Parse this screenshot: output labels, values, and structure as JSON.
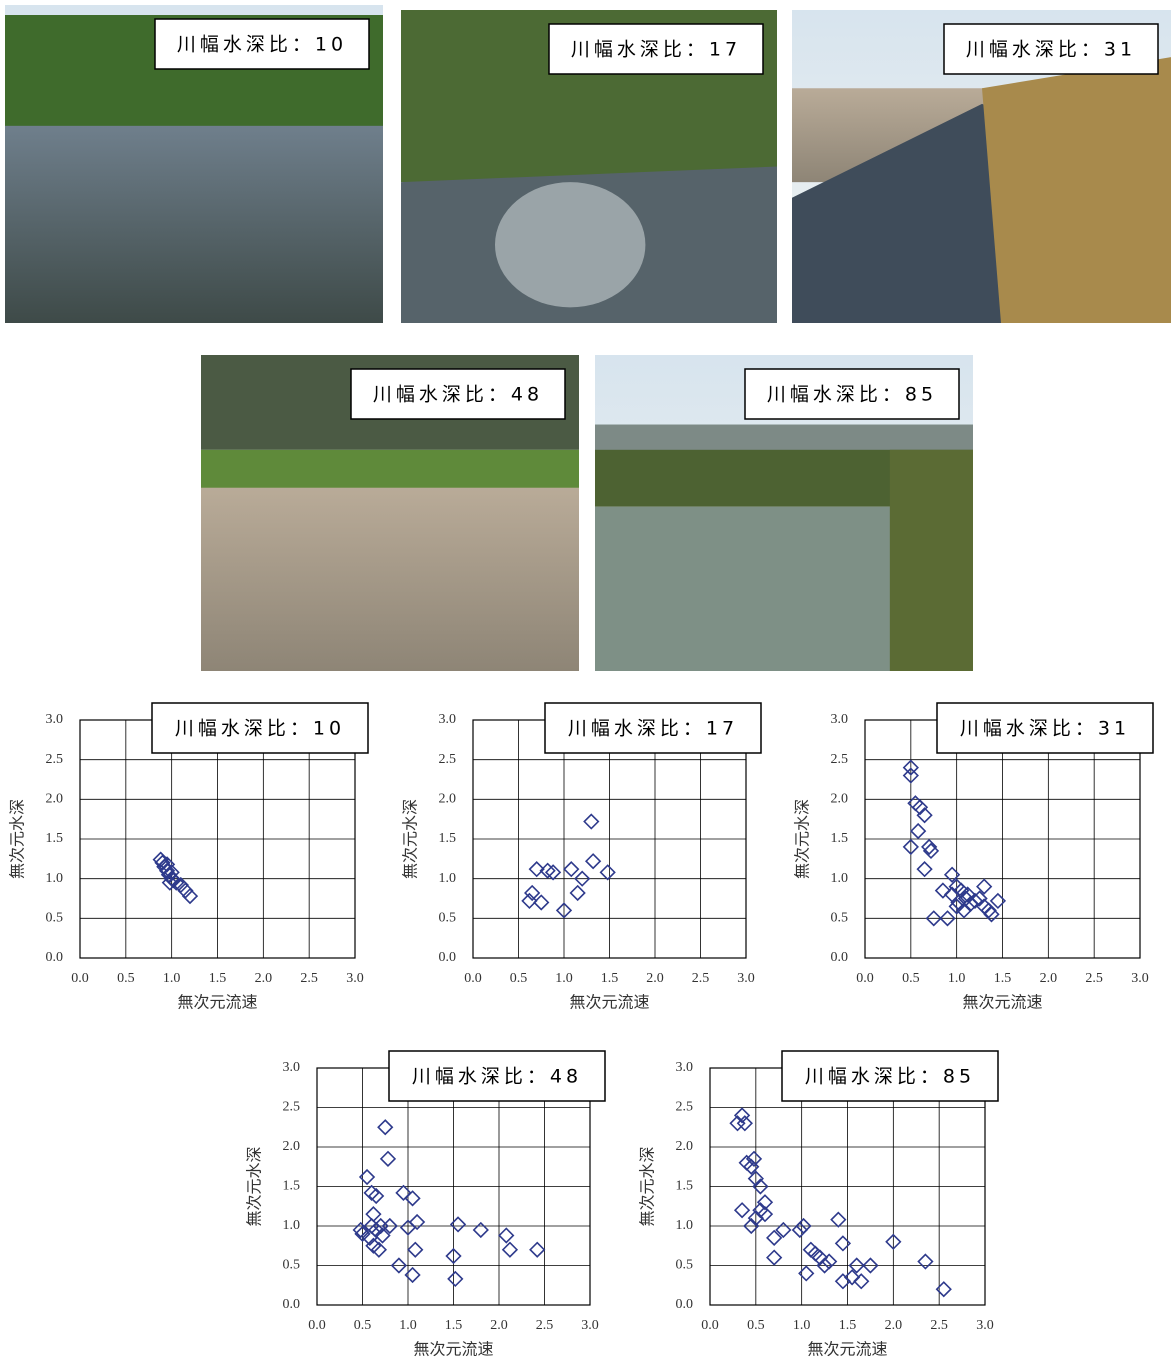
{
  "photos": [
    {
      "label": "川幅水深比：10"
    },
    {
      "label": "川幅水深比：17"
    },
    {
      "label": "川幅水深比：31"
    },
    {
      "label": "川幅水深比：48"
    },
    {
      "label": "川幅水深比：85"
    }
  ],
  "chart_data": [
    {
      "type": "scatter",
      "title": "川幅水深比：10",
      "x_label": "無次元流速",
      "y_label": "無次元水深",
      "color": "#2e3a8c",
      "grid": true,
      "xlim": [
        0,
        3
      ],
      "ylim": [
        0,
        3
      ],
      "xticks": [
        {
          "value": 0,
          "label": "0.0"
        },
        {
          "value": 0.5,
          "label": "0.5"
        },
        {
          "value": 1,
          "label": "1.0"
        },
        {
          "value": 1.5,
          "label": "1.5"
        },
        {
          "value": 2,
          "label": "2.0"
        },
        {
          "value": 2.5,
          "label": "2.5"
        },
        {
          "value": 3,
          "label": "3.0"
        }
      ],
      "yticks": [
        {
          "value": 0,
          "label": "0.0"
        },
        {
          "value": 0.5,
          "label": "0.5"
        },
        {
          "value": 1,
          "label": "1.0"
        },
        {
          "value": 1.5,
          "label": "1.5"
        },
        {
          "value": 2,
          "label": "2.0"
        },
        {
          "value": 2.5,
          "label": "2.5"
        },
        {
          "value": 3,
          "label": "3.0"
        }
      ],
      "x": [
        0.88,
        0.9,
        0.92,
        0.95,
        0.97,
        1.0,
        0.98,
        1.02,
        1.05,
        1.1,
        1.15,
        1.2,
        0.95,
        1.0
      ],
      "values": [
        1.24,
        1.2,
        1.15,
        1.1,
        1.05,
        1.0,
        0.95,
        0.98,
        0.95,
        0.92,
        0.85,
        0.78,
        1.18,
        1.08
      ]
    },
    {
      "type": "scatter",
      "title": "川幅水深比：17",
      "x_label": "無次元流速",
      "y_label": "無次元水深",
      "color": "#2e3a8c",
      "grid": true,
      "xlim": [
        0,
        3
      ],
      "ylim": [
        0,
        3
      ],
      "xticks": [
        {
          "value": 0,
          "label": "0.0"
        },
        {
          "value": 0.5,
          "label": "0.5"
        },
        {
          "value": 1,
          "label": "1.0"
        },
        {
          "value": 1.5,
          "label": "1.5"
        },
        {
          "value": 2,
          "label": "2.0"
        },
        {
          "value": 2.5,
          "label": "2.5"
        },
        {
          "value": 3,
          "label": "3.0"
        }
      ],
      "yticks": [
        {
          "value": 0,
          "label": "0.0"
        },
        {
          "value": 0.5,
          "label": "0.5"
        },
        {
          "value": 1,
          "label": "1.0"
        },
        {
          "value": 1.5,
          "label": "1.5"
        },
        {
          "value": 2,
          "label": "2.0"
        },
        {
          "value": 2.5,
          "label": "2.5"
        },
        {
          "value": 3,
          "label": "3.0"
        }
      ],
      "x": [
        0.62,
        0.65,
        0.7,
        0.75,
        0.82,
        0.88,
        1.0,
        1.08,
        1.15,
        1.2,
        1.3,
        1.32,
        1.48
      ],
      "values": [
        0.72,
        0.82,
        1.12,
        0.7,
        1.1,
        1.08,
        0.6,
        1.12,
        0.82,
        1.0,
        1.72,
        1.22,
        1.08
      ]
    },
    {
      "type": "scatter",
      "title": "川幅水深比：31",
      "x_label": "無次元流速",
      "y_label": "無次元水深",
      "color": "#2e3a8c",
      "grid": true,
      "xlim": [
        0,
        3
      ],
      "ylim": [
        0,
        3
      ],
      "xticks": [
        {
          "value": 0,
          "label": "0.0"
        },
        {
          "value": 0.5,
          "label": "0.5"
        },
        {
          "value": 1,
          "label": "1.0"
        },
        {
          "value": 1.5,
          "label": "1.5"
        },
        {
          "value": 2,
          "label": "2.0"
        },
        {
          "value": 2.5,
          "label": "2.5"
        },
        {
          "value": 3,
          "label": "3.0"
        }
      ],
      "yticks": [
        {
          "value": 0,
          "label": "0.0"
        },
        {
          "value": 0.5,
          "label": "0.5"
        },
        {
          "value": 1,
          "label": "1.0"
        },
        {
          "value": 1.5,
          "label": "1.5"
        },
        {
          "value": 2,
          "label": "2.0"
        },
        {
          "value": 2.5,
          "label": "2.5"
        },
        {
          "value": 3,
          "label": "3.0"
        }
      ],
      "x": [
        0.5,
        0.5,
        0.5,
        0.55,
        0.6,
        0.58,
        0.65,
        0.65,
        0.7,
        0.72,
        0.75,
        0.85,
        0.9,
        0.95,
        0.95,
        1.0,
        1.02,
        1.05,
        1.08,
        1.1,
        1.12,
        1.15,
        1.2,
        1.25,
        1.3,
        1.3,
        1.35,
        1.38,
        1.45,
        1.0
      ],
      "values": [
        2.4,
        2.3,
        1.4,
        1.95,
        1.9,
        1.6,
        1.8,
        1.12,
        1.4,
        1.35,
        0.5,
        0.85,
        0.5,
        1.05,
        0.8,
        0.9,
        0.7,
        0.85,
        0.6,
        0.75,
        0.8,
        0.68,
        0.72,
        0.75,
        0.9,
        0.65,
        0.6,
        0.55,
        0.72,
        0.65
      ]
    },
    {
      "type": "scatter",
      "title": "川幅水深比：48",
      "x_label": "無次元流速",
      "y_label": "無次元水深",
      "color": "#2e3a8c",
      "grid": true,
      "xlim": [
        0,
        3
      ],
      "ylim": [
        0,
        3
      ],
      "xticks": [
        {
          "value": 0,
          "label": "0.0"
        },
        {
          "value": 0.5,
          "label": "0.5"
        },
        {
          "value": 1,
          "label": "1.0"
        },
        {
          "value": 1.5,
          "label": "1.5"
        },
        {
          "value": 2,
          "label": "2.0"
        },
        {
          "value": 2.5,
          "label": "2.5"
        },
        {
          "value": 3,
          "label": "3.0"
        }
      ],
      "yticks": [
        {
          "value": 0,
          "label": "0.0"
        },
        {
          "value": 0.5,
          "label": "0.5"
        },
        {
          "value": 1,
          "label": "1.0"
        },
        {
          "value": 1.5,
          "label": "1.5"
        },
        {
          "value": 2,
          "label": "2.0"
        },
        {
          "value": 2.5,
          "label": "2.5"
        },
        {
          "value": 3,
          "label": "3.0"
        }
      ],
      "x": [
        0.48,
        0.5,
        0.55,
        0.58,
        0.6,
        0.62,
        0.65,
        0.65,
        0.68,
        0.7,
        0.72,
        0.75,
        0.78,
        0.8,
        0.9,
        0.95,
        1.0,
        1.05,
        1.05,
        1.08,
        1.1,
        1.5,
        1.52,
        1.55,
        1.8,
        2.08,
        2.12,
        2.42,
        0.6,
        0.62
      ],
      "values": [
        0.95,
        0.9,
        1.62,
        0.85,
        1.42,
        0.75,
        1.38,
        0.95,
        0.7,
        1.0,
        0.88,
        2.25,
        1.85,
        1.0,
        0.5,
        1.42,
        0.98,
        0.38,
        1.35,
        0.7,
        1.05,
        0.62,
        0.33,
        1.02,
        0.95,
        0.88,
        0.7,
        0.7,
        1.0,
        1.15
      ]
    },
    {
      "type": "scatter",
      "title": "川幅水深比：85",
      "x_label": "無次元流速",
      "y_label": "無次元水深",
      "color": "#2e3a8c",
      "grid": true,
      "xlim": [
        0,
        3
      ],
      "ylim": [
        0,
        3
      ],
      "xticks": [
        {
          "value": 0,
          "label": "0.0"
        },
        {
          "value": 0.5,
          "label": "0.5"
        },
        {
          "value": 1,
          "label": "1.0"
        },
        {
          "value": 1.5,
          "label": "1.5"
        },
        {
          "value": 2,
          "label": "2.0"
        },
        {
          "value": 2.5,
          "label": "2.5"
        },
        {
          "value": 3,
          "label": "3.0"
        }
      ],
      "yticks": [
        {
          "value": 0,
          "label": "0.0"
        },
        {
          "value": 0.5,
          "label": "0.5"
        },
        {
          "value": 1,
          "label": "1.0"
        },
        {
          "value": 1.5,
          "label": "1.5"
        },
        {
          "value": 2,
          "label": "2.0"
        },
        {
          "value": 2.5,
          "label": "2.5"
        },
        {
          "value": 3,
          "label": "3.0"
        }
      ],
      "x": [
        0.3,
        0.35,
        0.38,
        0.35,
        0.4,
        0.45,
        0.48,
        0.5,
        0.45,
        0.5,
        0.55,
        0.55,
        0.6,
        0.6,
        0.7,
        0.7,
        0.8,
        0.98,
        1.02,
        1.05,
        1.1,
        1.15,
        1.2,
        1.25,
        1.3,
        1.4,
        1.45,
        1.45,
        1.55,
        1.6,
        1.65,
        1.75,
        2.0,
        2.35,
        2.55
      ],
      "values": [
        2.3,
        2.4,
        2.3,
        1.2,
        1.8,
        1.75,
        1.85,
        1.6,
        1.0,
        1.1,
        1.5,
        1.2,
        1.3,
        1.15,
        0.85,
        0.6,
        0.95,
        0.95,
        1.0,
        0.4,
        0.7,
        0.65,
        0.6,
        0.5,
        0.55,
        1.08,
        0.78,
        0.3,
        0.35,
        0.5,
        0.3,
        0.5,
        0.8,
        0.55,
        0.2
      ]
    }
  ]
}
